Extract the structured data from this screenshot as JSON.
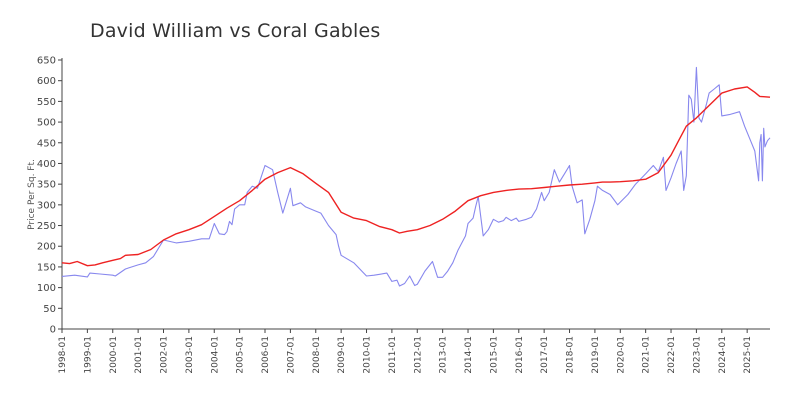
{
  "chart_data": {
    "type": "line",
    "title": "David William vs Coral Gables",
    "xlabel": "",
    "ylabel": "Price Per Sq. Ft.",
    "ylim": [
      0,
      650
    ],
    "yticks": [
      0,
      50,
      100,
      150,
      200,
      250,
      300,
      350,
      400,
      450,
      500,
      550,
      600,
      650
    ],
    "x_tick_labels": [
      "1998-01",
      "1999-01",
      "2000-01",
      "2001-01",
      "2002-01",
      "2003-01",
      "2004-01",
      "2005-01",
      "2006-01",
      "2007-01",
      "2008-01",
      "2009-01",
      "2010-01",
      "2011-01",
      "2012-01",
      "2013-01",
      "2014-01",
      "2015-01",
      "2016-01",
      "2017-01",
      "2018-01",
      "2019-01",
      "2020-01",
      "2021-01",
      "2022-01",
      "2023-01",
      "2024-01",
      "2025-01"
    ],
    "xlim": [
      1998.0,
      2025.9
    ],
    "grid": false,
    "legend": "none",
    "series": [
      {
        "color": "#8888ee",
        "points": [
          [
            1998.0,
            127
          ],
          [
            1998.5,
            130
          ],
          [
            1999.0,
            126
          ],
          [
            1999.1,
            135
          ],
          [
            1999.5,
            133
          ],
          [
            2000.0,
            130
          ],
          [
            2000.1,
            128
          ],
          [
            2000.5,
            145
          ],
          [
            2001.0,
            155
          ],
          [
            2001.3,
            160
          ],
          [
            2001.6,
            175
          ],
          [
            2002.0,
            215
          ],
          [
            2002.5,
            208
          ],
          [
            2003.0,
            212
          ],
          [
            2003.5,
            218
          ],
          [
            2003.8,
            218
          ],
          [
            2004.0,
            255
          ],
          [
            2004.2,
            230
          ],
          [
            2004.4,
            228
          ],
          [
            2004.5,
            235
          ],
          [
            2004.6,
            260
          ],
          [
            2004.7,
            252
          ],
          [
            2004.8,
            290
          ],
          [
            2005.0,
            300
          ],
          [
            2005.2,
            300
          ],
          [
            2005.3,
            330
          ],
          [
            2005.5,
            345
          ],
          [
            2005.7,
            340
          ],
          [
            2006.0,
            395
          ],
          [
            2006.3,
            385
          ],
          [
            2006.5,
            330
          ],
          [
            2006.7,
            280
          ],
          [
            2007.0,
            340
          ],
          [
            2007.1,
            298
          ],
          [
            2007.4,
            305
          ],
          [
            2007.6,
            295
          ],
          [
            2008.0,
            285
          ],
          [
            2008.2,
            280
          ],
          [
            2008.5,
            250
          ],
          [
            2008.8,
            228
          ],
          [
            2008.9,
            200
          ],
          [
            2009.0,
            178
          ],
          [
            2009.5,
            160
          ],
          [
            2010.0,
            128
          ],
          [
            2010.3,
            130
          ],
          [
            2010.8,
            135
          ],
          [
            2011.0,
            115
          ],
          [
            2011.2,
            118
          ],
          [
            2011.3,
            104
          ],
          [
            2011.5,
            110
          ],
          [
            2011.7,
            128
          ],
          [
            2011.9,
            105
          ],
          [
            2012.0,
            108
          ],
          [
            2012.3,
            140
          ],
          [
            2012.6,
            163
          ],
          [
            2012.8,
            125
          ],
          [
            2013.0,
            125
          ],
          [
            2013.2,
            140
          ],
          [
            2013.4,
            160
          ],
          [
            2013.6,
            190
          ],
          [
            2013.9,
            225
          ],
          [
            2014.0,
            255
          ],
          [
            2014.2,
            268
          ],
          [
            2014.3,
            295
          ],
          [
            2014.4,
            320
          ],
          [
            2014.6,
            225
          ],
          [
            2014.8,
            240
          ],
          [
            2015.0,
            265
          ],
          [
            2015.2,
            258
          ],
          [
            2015.4,
            262
          ],
          [
            2015.5,
            270
          ],
          [
            2015.7,
            262
          ],
          [
            2015.9,
            268
          ],
          [
            2016.0,
            260
          ],
          [
            2016.3,
            265
          ],
          [
            2016.5,
            270
          ],
          [
            2016.7,
            290
          ],
          [
            2016.9,
            330
          ],
          [
            2017.0,
            310
          ],
          [
            2017.2,
            330
          ],
          [
            2017.4,
            385
          ],
          [
            2017.6,
            355
          ],
          [
            2017.8,
            375
          ],
          [
            2018.0,
            395
          ],
          [
            2018.1,
            345
          ],
          [
            2018.3,
            305
          ],
          [
            2018.5,
            312
          ],
          [
            2018.6,
            230
          ],
          [
            2018.8,
            265
          ],
          [
            2019.0,
            310
          ],
          [
            2019.1,
            345
          ],
          [
            2019.3,
            335
          ],
          [
            2019.6,
            325
          ],
          [
            2019.9,
            300
          ],
          [
            2020.3,
            325
          ],
          [
            2020.6,
            350
          ],
          [
            2021.0,
            375
          ],
          [
            2021.3,
            395
          ],
          [
            2021.5,
            380
          ],
          [
            2021.7,
            415
          ],
          [
            2021.8,
            335
          ],
          [
            2022.0,
            365
          ],
          [
            2022.2,
            400
          ],
          [
            2022.4,
            430
          ],
          [
            2022.5,
            335
          ],
          [
            2022.6,
            370
          ],
          [
            2022.7,
            565
          ],
          [
            2022.8,
            555
          ],
          [
            2022.9,
            500
          ],
          [
            2023.0,
            632
          ],
          [
            2023.1,
            510
          ],
          [
            2023.2,
            500
          ],
          [
            2023.4,
            545
          ],
          [
            2023.5,
            570
          ],
          [
            2023.7,
            580
          ],
          [
            2023.9,
            590
          ],
          [
            2024.0,
            515
          ],
          [
            2024.3,
            518
          ],
          [
            2024.7,
            525
          ],
          [
            2024.9,
            490
          ],
          [
            2025.1,
            460
          ],
          [
            2025.3,
            430
          ],
          [
            2025.45,
            358
          ],
          [
            2025.5,
            450
          ],
          [
            2025.55,
            470
          ],
          [
            2025.6,
            358
          ],
          [
            2025.65,
            485
          ],
          [
            2025.7,
            440
          ],
          [
            2025.8,
            455
          ],
          [
            2025.9,
            462
          ]
        ]
      },
      {
        "color": "#ee2222",
        "points": [
          [
            1998.0,
            160
          ],
          [
            1998.3,
            158
          ],
          [
            1998.6,
            163
          ],
          [
            1999.0,
            153
          ],
          [
            1999.3,
            155
          ],
          [
            1999.6,
            160
          ],
          [
            2000.0,
            166
          ],
          [
            2000.3,
            170
          ],
          [
            2000.5,
            178
          ],
          [
            2001.0,
            180
          ],
          [
            2001.5,
            192
          ],
          [
            2002.0,
            215
          ],
          [
            2002.5,
            230
          ],
          [
            2003.0,
            240
          ],
          [
            2003.5,
            252
          ],
          [
            2004.0,
            272
          ],
          [
            2004.5,
            292
          ],
          [
            2005.0,
            310
          ],
          [
            2005.5,
            335
          ],
          [
            2006.0,
            362
          ],
          [
            2006.5,
            378
          ],
          [
            2007.0,
            390
          ],
          [
            2007.5,
            375
          ],
          [
            2008.0,
            352
          ],
          [
            2008.5,
            330
          ],
          [
            2009.0,
            282
          ],
          [
            2009.5,
            268
          ],
          [
            2010.0,
            262
          ],
          [
            2010.5,
            248
          ],
          [
            2011.0,
            240
          ],
          [
            2011.3,
            232
          ],
          [
            2011.6,
            236
          ],
          [
            2012.0,
            240
          ],
          [
            2012.5,
            250
          ],
          [
            2013.0,
            265
          ],
          [
            2013.5,
            285
          ],
          [
            2014.0,
            310
          ],
          [
            2014.5,
            322
          ],
          [
            2015.0,
            330
          ],
          [
            2015.5,
            335
          ],
          [
            2016.0,
            338
          ],
          [
            2016.5,
            339
          ],
          [
            2017.0,
            342
          ],
          [
            2017.5,
            345
          ],
          [
            2018.0,
            348
          ],
          [
            2018.5,
            350
          ],
          [
            2019.0,
            353
          ],
          [
            2019.3,
            355
          ],
          [
            2019.6,
            355
          ],
          [
            2020.0,
            356
          ],
          [
            2020.5,
            358
          ],
          [
            2021.0,
            362
          ],
          [
            2021.5,
            378
          ],
          [
            2022.0,
            420
          ],
          [
            2022.3,
            455
          ],
          [
            2022.6,
            490
          ],
          [
            2023.0,
            510
          ],
          [
            2023.5,
            540
          ],
          [
            2024.0,
            570
          ],
          [
            2024.5,
            580
          ],
          [
            2025.0,
            585
          ],
          [
            2025.3,
            572
          ],
          [
            2025.5,
            562
          ],
          [
            2025.9,
            560
          ]
        ]
      }
    ]
  }
}
